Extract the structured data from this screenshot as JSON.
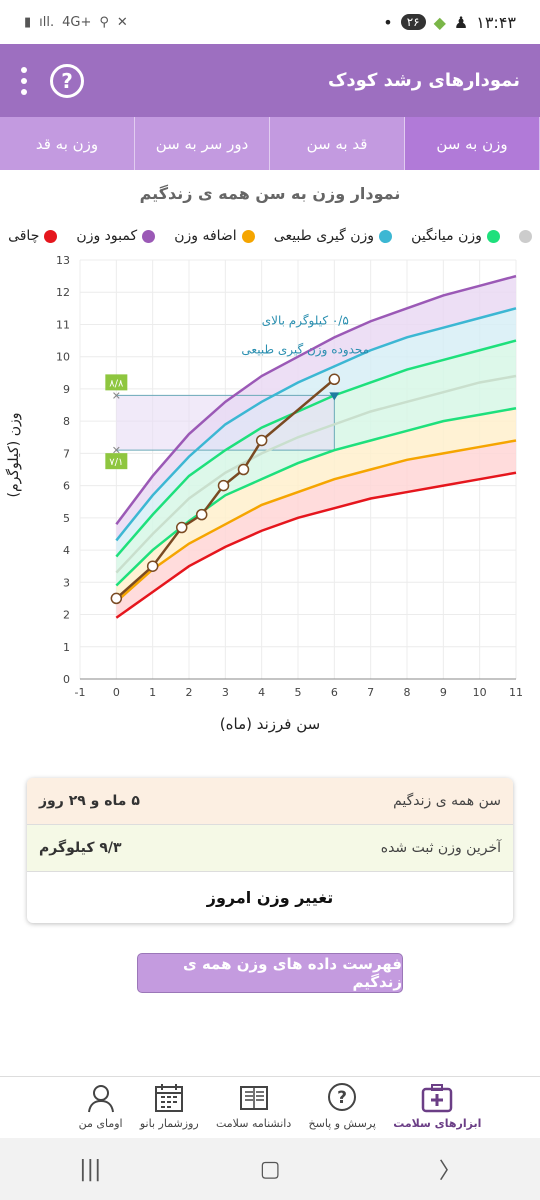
{
  "status_bar": {
    "time": "۱۳:۴۳",
    "notification_count": "۲۶",
    "network": "4G+",
    "icons": [
      "battery-icon",
      "signal-icon",
      "network-icon",
      "location-icon",
      "mute-icon",
      "app-icon",
      "person-icon",
      "dot-icon"
    ]
  },
  "app_bar": {
    "title": "نمودارهای رشد کودک",
    "help_symbol": "?"
  },
  "tabs": [
    {
      "label": "وزن به سن",
      "active": true
    },
    {
      "label": "قد به سن",
      "active": false
    },
    {
      "label": "دور سر به سن",
      "active": false
    },
    {
      "label": "وزن به قد",
      "active": false
    }
  ],
  "chart": {
    "title": "نمودار وزن به سن همه ی زندگیم",
    "xlabel": "سن فرزند (ماه)",
    "ylabel": "وزن (کیلوگرم)",
    "legend": [
      {
        "label": "چاقی",
        "color": "#e5161d"
      },
      {
        "label": "کمبود وزن",
        "color": "#9b59b6"
      },
      {
        "label": "اضافه وزن",
        "color": "#f5a500"
      },
      {
        "label": "وزن گیری طبیعی",
        "color": "#3cb7d3"
      },
      {
        "label": "وزن میانگین",
        "color": "#1ee07c"
      },
      {
        "label": "",
        "color": "#cccccc"
      }
    ],
    "annotation_line1": "۰/۵ کیلوگرم بالای",
    "annotation_line2": "محدوده وزن گیری طبیعی",
    "marker_upper": "۸/۸",
    "marker_lower": "۷/۱"
  },
  "chart_data": {
    "type": "line",
    "xlim": [
      -1,
      11
    ],
    "ylim": [
      0,
      13
    ],
    "x_ticks": [
      -1,
      0,
      1,
      2,
      3,
      4,
      5,
      6,
      7,
      8,
      9,
      10,
      11
    ],
    "y_ticks": [
      0,
      1,
      2,
      3,
      4,
      5,
      6,
      7,
      8,
      9,
      10,
      11,
      12,
      13
    ],
    "x_tick_labels": [
      "-1",
      "0",
      "1",
      "2",
      "3",
      "4",
      "5",
      "6",
      "7",
      "8",
      "9",
      "10",
      "11"
    ],
    "y_tick_labels": [
      "0",
      "1",
      "2",
      "3",
      "4",
      "5",
      "6",
      "7",
      "8",
      "9",
      "10",
      "11",
      "12",
      "13"
    ],
    "reference_x": [
      0,
      1,
      2,
      3,
      4,
      5,
      6,
      7,
      8,
      9,
      10,
      11
    ],
    "reference_series": [
      {
        "color": "#9b59b6",
        "values": [
          4.8,
          6.3,
          7.6,
          8.6,
          9.4,
          10.0,
          10.6,
          11.1,
          11.5,
          11.9,
          12.2,
          12.5
        ]
      },
      {
        "color": "#3cb7d3",
        "values": [
          4.3,
          5.7,
          6.9,
          7.9,
          8.6,
          9.2,
          9.7,
          10.2,
          10.6,
          10.9,
          11.2,
          11.5
        ]
      },
      {
        "color": "#1ee07c",
        "values": [
          3.8,
          5.1,
          6.3,
          7.1,
          7.8,
          8.3,
          8.8,
          9.2,
          9.6,
          9.9,
          10.2,
          10.5
        ]
      },
      {
        "color": "#c9dfcd",
        "values": [
          3.3,
          4.5,
          5.6,
          6.4,
          7.0,
          7.5,
          7.9,
          8.3,
          8.6,
          8.9,
          9.2,
          9.4
        ]
      },
      {
        "color": "#1ee07c",
        "values": [
          2.9,
          4.0,
          4.9,
          5.7,
          6.2,
          6.7,
          7.1,
          7.4,
          7.7,
          8.0,
          8.2,
          8.4
        ]
      },
      {
        "color": "#f5a500",
        "values": [
          2.4,
          3.4,
          4.2,
          4.8,
          5.4,
          5.8,
          6.2,
          6.5,
          6.8,
          7.0,
          7.2,
          7.4
        ]
      },
      {
        "color": "#e5161d",
        "values": [
          1.9,
          2.7,
          3.5,
          4.1,
          4.6,
          5.0,
          5.3,
          5.6,
          5.8,
          6.0,
          6.2,
          6.4
        ]
      }
    ],
    "child_series": {
      "color": "#7a4a22",
      "x": [
        0,
        1,
        1.8,
        2.35,
        2.95,
        3.5,
        4.0,
        6.0
      ],
      "y": [
        2.5,
        3.5,
        4.7,
        5.1,
        6.0,
        6.5,
        7.4,
        9.3
      ]
    },
    "highlight_band": [
      7.1,
      8.8
    ],
    "highlight_x_end": 6.0
  },
  "summary": {
    "age_label": "سن همه ی زندگیم",
    "age_value": "۵ ماه و ۲۹ روز",
    "weight_label": "آخرین وزن ثبت شده",
    "weight_value": "۹/۳ کیلوگرم",
    "change_button": "تغییر وزن امروز"
  },
  "list_button": "فهرست داده های وزن همه ی زندگیم",
  "bottom_nav": [
    {
      "label": "ابزارهای سلامت",
      "icon": "first-aid-icon",
      "active": true
    },
    {
      "label": "پرسش و پاسخ",
      "icon": "question-icon",
      "active": false
    },
    {
      "label": "دانشنامه سلامت",
      "icon": "book-icon",
      "active": false
    },
    {
      "label": "روزشمار بانو",
      "icon": "calendar-icon",
      "active": false
    },
    {
      "label": "اومای من",
      "icon": "profile-icon",
      "active": false
    }
  ]
}
